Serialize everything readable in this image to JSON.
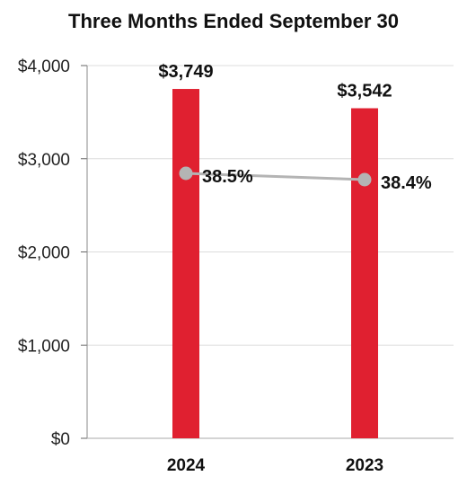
{
  "chart_data": {
    "type": "bar",
    "title": "Three Months Ended September 30",
    "categories": [
      "2024",
      "2023"
    ],
    "ylim": [
      0,
      4000
    ],
    "yticks": [
      0,
      1000,
      2000,
      3000,
      4000
    ],
    "ytick_labels": [
      "$0",
      "$1,000",
      "$2,000",
      "$3,000",
      "$4,000"
    ],
    "grid": true,
    "series": [
      {
        "type": "bar",
        "values": [
          3749,
          3542
        ],
        "labels": [
          "$3,749",
          "$3,542"
        ],
        "color": "#e02030"
      },
      {
        "type": "line",
        "values": [
          38.5,
          38.4
        ],
        "labels": [
          "38.5%",
          "38.4%"
        ],
        "color": "#b4b4b4"
      }
    ]
  }
}
